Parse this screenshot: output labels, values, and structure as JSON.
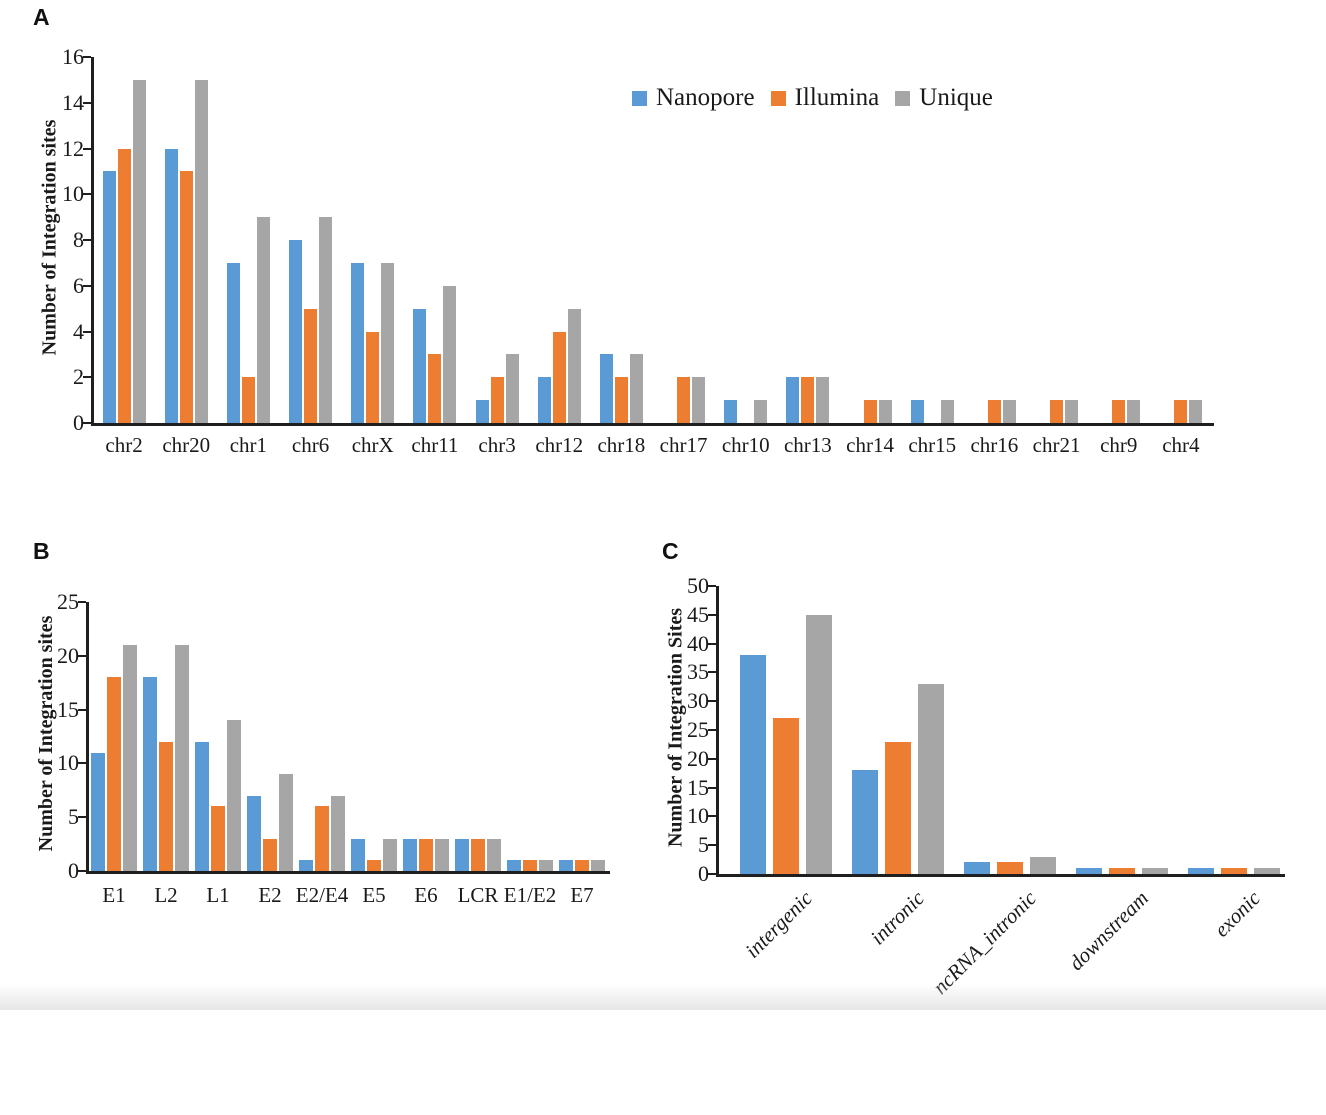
{
  "figure": {
    "background": "#ffffff",
    "text_color": "#1a1a1a",
    "axis_color": "#1f1f1f"
  },
  "chart_data": [
    {
      "panel": "A",
      "type": "bar",
      "title": "",
      "xlabel": "",
      "ylabel": "Number of Integration sites",
      "ylim": [
        0,
        16
      ],
      "ytick_step": 2,
      "grid": false,
      "legend_visible": true,
      "legend_position": "top-right-inside",
      "x_label_rotation": 0,
      "categories": [
        "chr2",
        "chr20",
        "chr1",
        "chr6",
        "chrX",
        "chr11",
        "chr3",
        "chr12",
        "chr18",
        "chr17",
        "chr10",
        "chr13",
        "chr14",
        "chr15",
        "chr16",
        "chr21",
        "chr9",
        "chr4"
      ],
      "series": [
        {
          "name": "Nanopore",
          "color": "#5B9BD5",
          "values": [
            11,
            12,
            7,
            8,
            7,
            5,
            1,
            2,
            3,
            0,
            1,
            2,
            0,
            1,
            0,
            0,
            0,
            0
          ]
        },
        {
          "name": "Illumina",
          "color": "#ED7D31",
          "values": [
            12,
            11,
            2,
            5,
            4,
            3,
            2,
            4,
            2,
            2,
            0,
            2,
            1,
            0,
            1,
            1,
            1,
            1
          ]
        },
        {
          "name": "Unique",
          "color": "#A6A6A6",
          "values": [
            15,
            15,
            9,
            9,
            7,
            6,
            3,
            5,
            3,
            2,
            1,
            2,
            1,
            1,
            1,
            1,
            1,
            1
          ]
        }
      ]
    },
    {
      "panel": "B",
      "type": "bar",
      "title": "",
      "xlabel": "",
      "ylabel": "Number of Integration sites",
      "ylim": [
        0,
        25
      ],
      "ytick_step": 5,
      "grid": false,
      "legend_visible": false,
      "x_label_rotation": 0,
      "categories": [
        "E1",
        "L2",
        "L1",
        "E2",
        "E2/E4",
        "E5",
        "E6",
        "LCR",
        "E1/E2",
        "E7"
      ],
      "series": [
        {
          "name": "Nanopore",
          "color": "#5B9BD5",
          "values": [
            11,
            18,
            12,
            7,
            1,
            3,
            3,
            3,
            1,
            1
          ]
        },
        {
          "name": "Illumina",
          "color": "#ED7D31",
          "values": [
            18,
            12,
            6,
            3,
            6,
            1,
            3,
            3,
            1,
            1
          ]
        },
        {
          "name": "Unique",
          "color": "#A6A6A6",
          "values": [
            21,
            21,
            14,
            9,
            7,
            3,
            3,
            3,
            1,
            1
          ]
        }
      ]
    },
    {
      "panel": "C",
      "type": "bar",
      "title": "",
      "xlabel": "",
      "ylabel": "Number of Integration Sites",
      "ylim": [
        0,
        50
      ],
      "ytick_step": 5,
      "grid": false,
      "legend_visible": false,
      "x_label_rotation": 45,
      "categories": [
        "intergenic",
        "intronic",
        "ncRNA_intronic",
        "downstream",
        "exonic"
      ],
      "series": [
        {
          "name": "Nanopore",
          "color": "#5B9BD5",
          "values": [
            38,
            18,
            2,
            1,
            1
          ]
        },
        {
          "name": "Illumina",
          "color": "#ED7D31",
          "values": [
            27,
            23,
            2,
            1,
            1
          ]
        },
        {
          "name": "Unique",
          "color": "#A6A6A6",
          "values": [
            45,
            33,
            3,
            1,
            1
          ]
        }
      ]
    }
  ]
}
